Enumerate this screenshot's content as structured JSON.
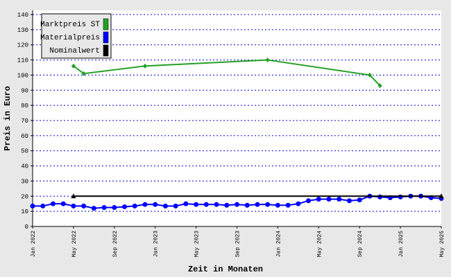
{
  "chart_data": {
    "type": "line",
    "x_label": "Zeit in Monaten",
    "y_label": "Preis in Euro",
    "categories": [
      "Jan 2022",
      null,
      null,
      null,
      "May 2022",
      null,
      null,
      null,
      "Sep 2022",
      null,
      null,
      null,
      "Jan 2023",
      null,
      null,
      null,
      "May 2023",
      null,
      null,
      null,
      "Sep 2023",
      null,
      null,
      null,
      "Jan 2024",
      null,
      null,
      null,
      "May 2024",
      null,
      null,
      null,
      "Sep 2024",
      null,
      null,
      null,
      "Jan 2025",
      null,
      null,
      null,
      "May 2025"
    ],
    "series": [
      {
        "name": "Marktpreis ST",
        "color": "#22a022",
        "marker": "diamond",
        "values": [
          null,
          null,
          null,
          null,
          106,
          101,
          null,
          null,
          null,
          null,
          null,
          106,
          null,
          null,
          null,
          null,
          null,
          null,
          null,
          null,
          null,
          null,
          null,
          110,
          null,
          null,
          null,
          null,
          null,
          null,
          null,
          null,
          null,
          100,
          93,
          null,
          null,
          null,
          null,
          null,
          null
        ]
      },
      {
        "name": "Materialpreis",
        "color": "#0000ff",
        "marker": "circle",
        "values": [
          13.5,
          13.5,
          15,
          15,
          13.5,
          13.5,
          12,
          12.5,
          12.5,
          13,
          13.5,
          14.5,
          14.5,
          13.5,
          13.5,
          15,
          14.5,
          14.5,
          14.5,
          14,
          14.5,
          14,
          14.5,
          14.5,
          14,
          14,
          15,
          17,
          18,
          18,
          18,
          17,
          17.5,
          20,
          19.5,
          19,
          19.5,
          20,
          20,
          19,
          18.5
        ]
      },
      {
        "name": "Nominalwert",
        "color": "#000000",
        "marker": "triangle",
        "values": [
          null,
          null,
          null,
          null,
          20,
          null,
          null,
          null,
          null,
          null,
          null,
          null,
          null,
          null,
          null,
          null,
          null,
          null,
          null,
          null,
          null,
          null,
          null,
          null,
          null,
          null,
          null,
          null,
          null,
          null,
          null,
          null,
          null,
          null,
          null,
          null,
          null,
          null,
          null,
          null,
          20
        ]
      }
    ],
    "span_gaps": true,
    "ylim": [
      0,
      140
    ],
    "yticks": [
      0,
      10,
      20,
      30,
      40,
      50,
      60,
      70,
      80,
      90,
      100,
      110,
      120,
      130,
      140
    ],
    "grid": true,
    "legend": "top-left"
  }
}
